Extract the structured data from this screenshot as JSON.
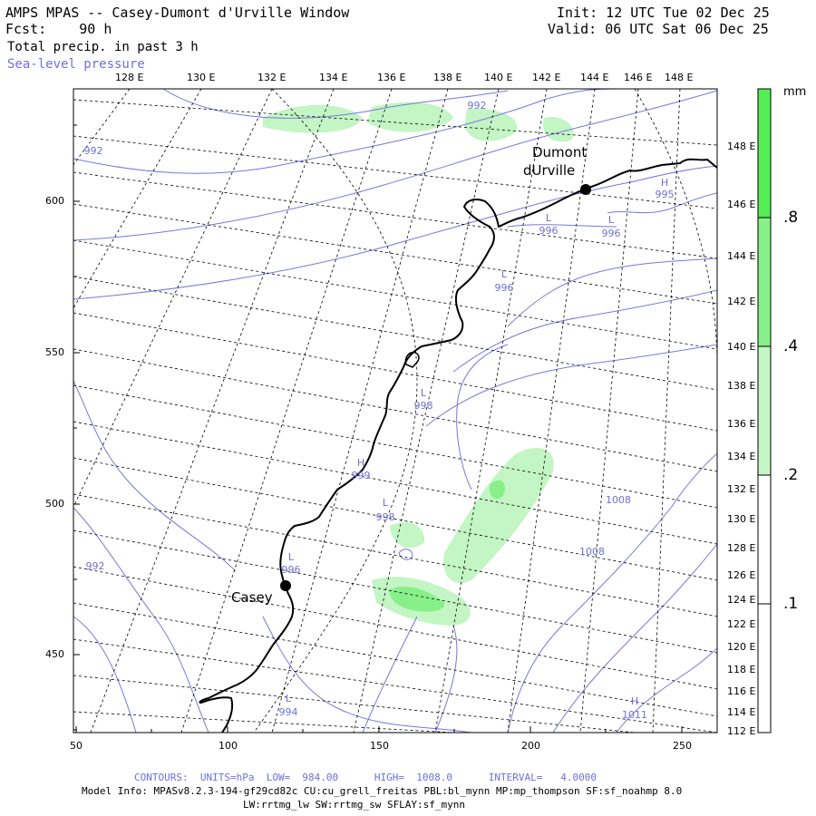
{
  "header": {
    "title": "AMPS MPAS -- Casey-Dumont d'Urville Window",
    "fcst": "Fcst:    90 h",
    "field": "Total precip. in past 3 h",
    "contour_field": "Sea-level pressure",
    "init": "Init: 12 UTC Tue 02 Dec 25",
    "valid": "Valid: 06 UTC Sat 06 Dec 25"
  },
  "map": {
    "top_lon_labels": [
      "128 E",
      "130 E",
      "132 E",
      "134 E",
      "136 E",
      "138 E",
      "140 E",
      "142 E",
      "144 E",
      "146 E",
      "148 E"
    ],
    "right_lon_labels": [
      "148 E",
      "146 E",
      "144 E",
      "142 E",
      "140 E",
      "138 E",
      "136 E",
      "134 E",
      "132 E",
      "130 E",
      "128 E",
      "126 E",
      "124 E",
      "122 E",
      "120 E",
      "118 E",
      "116 E",
      "114 E",
      "112 E"
    ],
    "left_y_labels": [
      "600",
      "550",
      "500",
      "450"
    ],
    "bottom_x_labels": [
      "50",
      "100",
      "150",
      "200",
      "250"
    ],
    "stations": [
      {
        "name_line1": "Dumont",
        "name_line2": "dUrville"
      },
      {
        "name_line1": "Casey",
        "name_line2": ""
      }
    ],
    "pressure_labels": [
      {
        "kind": "",
        "value": "992"
      },
      {
        "kind": "",
        "value": "992"
      },
      {
        "kind": "",
        "value": "992"
      },
      {
        "kind": "H",
        "value": "995"
      },
      {
        "kind": "L",
        "value": "996"
      },
      {
        "kind": "L",
        "value": "996"
      },
      {
        "kind": "L",
        "value": "996"
      },
      {
        "kind": "L",
        "value": "998"
      },
      {
        "kind": "H",
        "value": "999"
      },
      {
        "kind": "L",
        "value": "998"
      },
      {
        "kind": "L",
        "value": "996"
      },
      {
        "kind": "",
        "value": "1008"
      },
      {
        "kind": "",
        "value": "1008"
      },
      {
        "kind": "L",
        "value": "994"
      },
      {
        "kind": "H",
        "value": "1011"
      }
    ]
  },
  "colorbar": {
    "unit": "mm",
    "labels": [
      ".8",
      ".4",
      ".2",
      ".1"
    ],
    "colors": [
      "#55ee55",
      "#88f088",
      "#c4f5c4",
      "#ffffff"
    ]
  },
  "footer": {
    "contours": "CONTOURS:  UNITS=hPa  LOW=  984.00      HIGH=  1008.0      INTERVAL=   4.0000",
    "model_info": "Model Info: MPASv8.2.3-194-gf29cd82c CU:cu_grell_freitas PBL:bl_mynn MP:mp_thompson SF:sf_noahmp 8.0",
    "model_info2": "LW:rrtmg_lw SW:rrtmg_sw SFLAY:sf_mynn"
  }
}
